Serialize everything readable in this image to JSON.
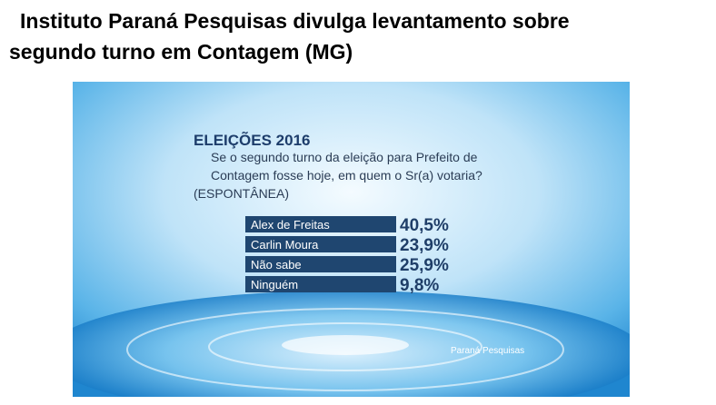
{
  "header": {
    "title_lines": [
      "Instituto Paraná Pesquisas divulga levantamento sobre",
      "segundo turno em Contagem (MG)"
    ]
  },
  "graphic": {
    "heading": "ELEIÇÕES 2016",
    "question_lines": [
      "Se o segundo turno da eleição para Prefeito de",
      "Contagem fosse hoje, em quem o Sr(a) votaria?"
    ],
    "note": "(ESPONTÂNEA)",
    "rows": [
      [
        "Alex de Freitas",
        "40,5%"
      ],
      [
        "Carlin Moura",
        "23,9%"
      ],
      [
        "Não sabe",
        "25,9%"
      ],
      [
        "Ninguém",
        "9,8%"
      ]
    ],
    "source": "Paraná Pesquisas"
  }
}
